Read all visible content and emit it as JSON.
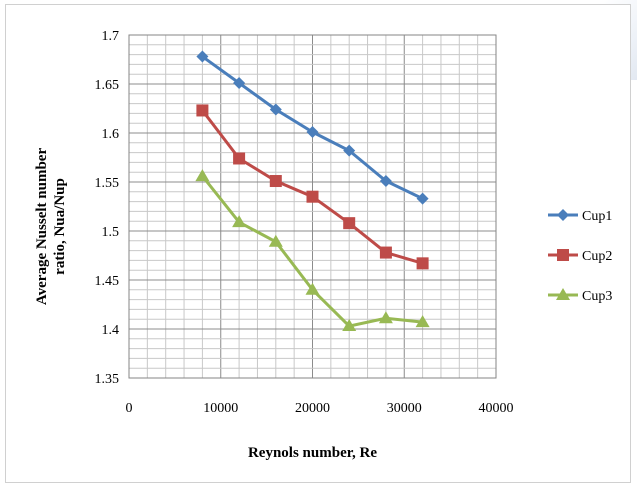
{
  "chart_data": {
    "type": "line",
    "title": "",
    "xlabel": "Reynols number, Re",
    "ylabel_lines": [
      "Average Nusselt number",
      "ratio, Nua/Nup"
    ],
    "xlim": [
      0,
      40000
    ],
    "ylim": [
      1.35,
      1.7
    ],
    "x_ticks": [
      0,
      10000,
      20000,
      30000,
      40000
    ],
    "x_tick_labels": [
      "0",
      "10000",
      "20000",
      "30000",
      "40000"
    ],
    "y_ticks": [
      1.35,
      1.4,
      1.45,
      1.5,
      1.55,
      1.6,
      1.65,
      1.7
    ],
    "y_tick_labels": [
      "1.35",
      "1.4",
      "1.45",
      "1.5",
      "1.55",
      "1.6",
      "1.65",
      "1.7"
    ],
    "grid": true,
    "legend_position": "right",
    "x": [
      8000,
      12000,
      16000,
      20000,
      24000,
      28000,
      32000
    ],
    "series": [
      {
        "name": "Cup1",
        "marker": "diamond",
        "color": "#4a7ebb",
        "values": [
          1.678,
          1.651,
          1.624,
          1.601,
          1.582,
          1.551,
          1.533
        ]
      },
      {
        "name": "Cup2",
        "marker": "square",
        "color": "#be4b48",
        "values": [
          1.623,
          1.574,
          1.551,
          1.535,
          1.508,
          1.478,
          1.467
        ]
      },
      {
        "name": "Cup3",
        "marker": "triangle",
        "color": "#98b954",
        "values": [
          1.556,
          1.509,
          1.489,
          1.44,
          1.403,
          1.411,
          1.407
        ]
      }
    ]
  }
}
